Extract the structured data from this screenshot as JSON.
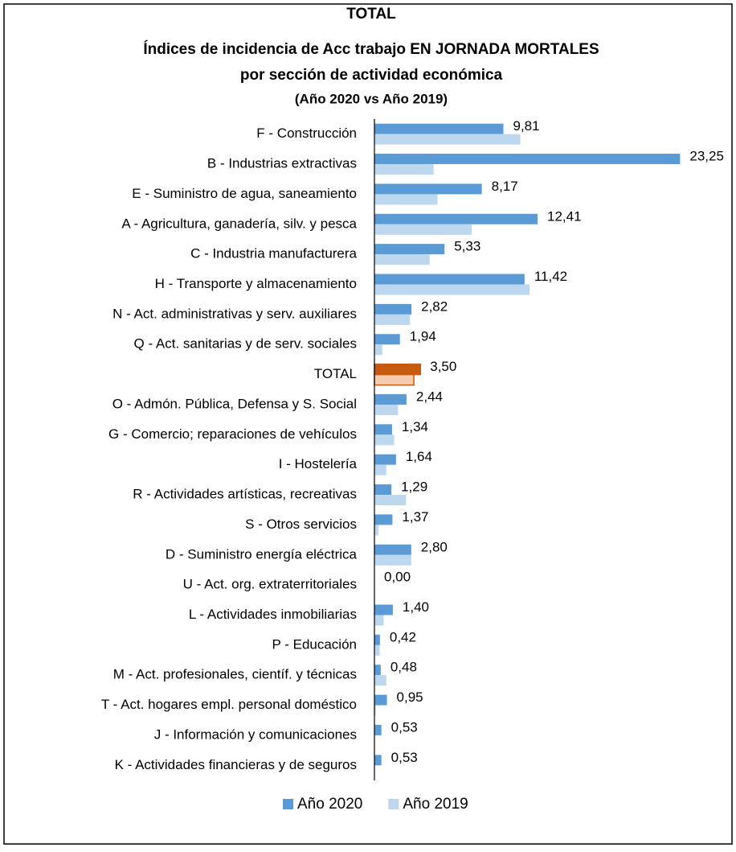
{
  "chart_data": {
    "type": "barh",
    "title": "TOTAL",
    "subtitle": [
      "Índices de incidencia de Acc trabajo EN JORNADA MORTALES",
      "por sección de actividad económica",
      "(Año 2020 vs Año 2019)"
    ],
    "categories": [
      "F - Construcción",
      "B - Industrias extractivas",
      "E - Suministro de agua, saneamiento",
      "A - Agricultura, ganadería, silv. y pesca",
      "C - Industria manufacturera",
      "H - Transporte y almacenamiento",
      "N - Act. administrativas y serv. auxiliares",
      "Q - Act. sanitarias y de serv. sociales",
      "TOTAL",
      "O - Admón. Pública, Defensa y S. Social",
      "G - Comercio; reparaciones de vehículos",
      "I - Hostelería",
      "R - Actividades artísticas, recreativas",
      "S - Otros servicios",
      "D - Suministro energía eléctrica",
      "U - Act. org. extraterritoriales",
      "L - Actividades inmobiliarias",
      "P - Educación",
      "M - Act. profesionales, científ. y técnicas",
      "T - Act. hogares empl. personal doméstico",
      "J - Información y comunicaciones",
      "K - Actividades financieras y de seguros"
    ],
    "series": [
      {
        "name": "Año 2020",
        "color": "#5b9bd5",
        "colors": [
          "#5b9bd5",
          "#5b9bd5",
          "#5b9bd5",
          "#5b9bd5",
          "#5b9bd5",
          "#5b9bd5",
          "#5b9bd5",
          "#5b9bd5",
          "#c55a11",
          "#5b9bd5",
          "#5b9bd5",
          "#5b9bd5",
          "#5b9bd5",
          "#5b9bd5",
          "#5b9bd5",
          "#5b9bd5",
          "#5b9bd5",
          "#5b9bd5",
          "#5b9bd5",
          "#5b9bd5",
          "#5b9bd5",
          "#5b9bd5"
        ],
        "values": [
          9.81,
          23.25,
          8.17,
          12.41,
          5.33,
          11.42,
          2.82,
          1.94,
          3.5,
          2.44,
          1.34,
          1.64,
          1.29,
          1.37,
          2.8,
          0.0,
          1.4,
          0.42,
          0.48,
          0.95,
          0.53,
          0.53
        ],
        "value_labels": [
          "9,81",
          "23,25",
          "8,17",
          "12,41",
          "5,33",
          "11,42",
          "2,82",
          "1,94",
          "3,50",
          "2,44",
          "1,34",
          "1,64",
          "1,29",
          "1,37",
          "2,80",
          "0,00",
          "1,40",
          "0,42",
          "0,48",
          "0,95",
          "0,53",
          "0,53"
        ]
      },
      {
        "name": "Año 2019",
        "color": "#bdd7ee",
        "colors": [
          "#bdd7ee",
          "#bdd7ee",
          "#bdd7ee",
          "#bdd7ee",
          "#bdd7ee",
          "#bdd7ee",
          "#bdd7ee",
          "#bdd7ee",
          "#f8cbad",
          "#bdd7ee",
          "#bdd7ee",
          "#bdd7ee",
          "#bdd7ee",
          "#bdd7ee",
          "#bdd7ee",
          "#bdd7ee",
          "#bdd7ee",
          "#bdd7ee",
          "#bdd7ee",
          "#bdd7ee",
          "#bdd7ee",
          "#bdd7ee"
        ],
        "values": [
          11.1,
          4.5,
          4.8,
          7.4,
          4.2,
          11.8,
          2.7,
          0.6,
          3.0,
          1.8,
          1.5,
          0.9,
          2.4,
          0.3,
          2.8,
          0,
          0.7,
          0.4,
          0.9,
          0.1,
          0,
          0
        ]
      }
    ],
    "xlim": [
      0,
      25
    ]
  }
}
